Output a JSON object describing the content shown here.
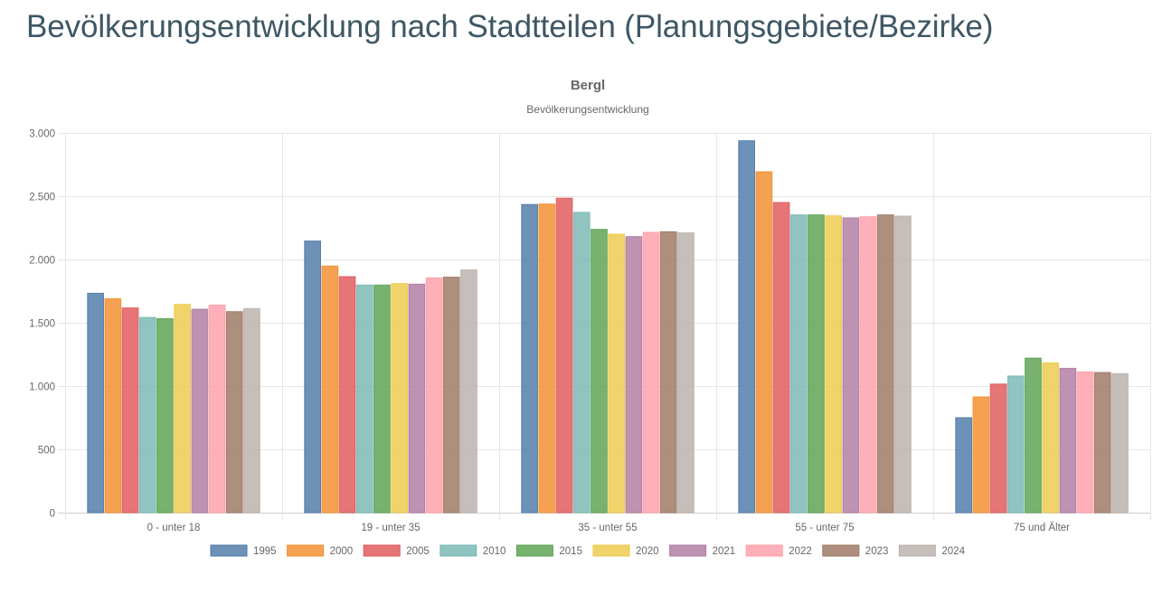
{
  "page": {
    "title": "Bevölkerungsentwicklung nach Stadtteilen (Planungsgebiete/Bezirke)"
  },
  "chart_data": {
    "type": "bar",
    "title": "Bergl",
    "subtitle": "Bevölkerungsentwicklung",
    "xlabel": "",
    "ylabel": "",
    "ylim": [
      0,
      3000
    ],
    "yticks": [
      0,
      500,
      1000,
      1500,
      2000,
      2500,
      3000
    ],
    "ytick_labels": [
      "0",
      "500",
      "1.000",
      "1.500",
      "2.000",
      "2.500",
      "3.000"
    ],
    "grid": true,
    "legend_position": "bottom",
    "categories": [
      "0 - unter 18",
      "19 - unter 35",
      "35 - unter 55",
      "55 - unter 75",
      "75 und Älter"
    ],
    "series": [
      {
        "name": "1995",
        "color": "#4e79a7",
        "values": [
          1733,
          2146,
          2434,
          2938,
          750
        ]
      },
      {
        "name": "2000",
        "color": "#f28e2c",
        "values": [
          1690,
          1948,
          2438,
          2693,
          914
        ]
      },
      {
        "name": "2005",
        "color": "#e15759",
        "values": [
          1617,
          1864,
          2484,
          2450,
          1016
        ]
      },
      {
        "name": "2010",
        "color": "#76b7b2",
        "values": [
          1542,
          1798,
          2372,
          2352,
          1079
        ]
      },
      {
        "name": "2015",
        "color": "#59a14f",
        "values": [
          1533,
          1798,
          2238,
          2352,
          1221
        ]
      },
      {
        "name": "2020",
        "color": "#edc949",
        "values": [
          1645,
          1810,
          2200,
          2345,
          1183
        ]
      },
      {
        "name": "2021",
        "color": "#af7aa1",
        "values": [
          1607,
          1805,
          2181,
          2329,
          1140
        ]
      },
      {
        "name": "2022",
        "color": "#ff9da7",
        "values": [
          1640,
          1855,
          2214,
          2338,
          1112
        ]
      },
      {
        "name": "2023",
        "color": "#9c755f",
        "values": [
          1588,
          1860,
          2219,
          2352,
          1107
        ]
      },
      {
        "name": "2024",
        "color": "#bab0ab",
        "values": [
          1612,
          1917,
          2210,
          2343,
          1098
        ]
      }
    ]
  }
}
